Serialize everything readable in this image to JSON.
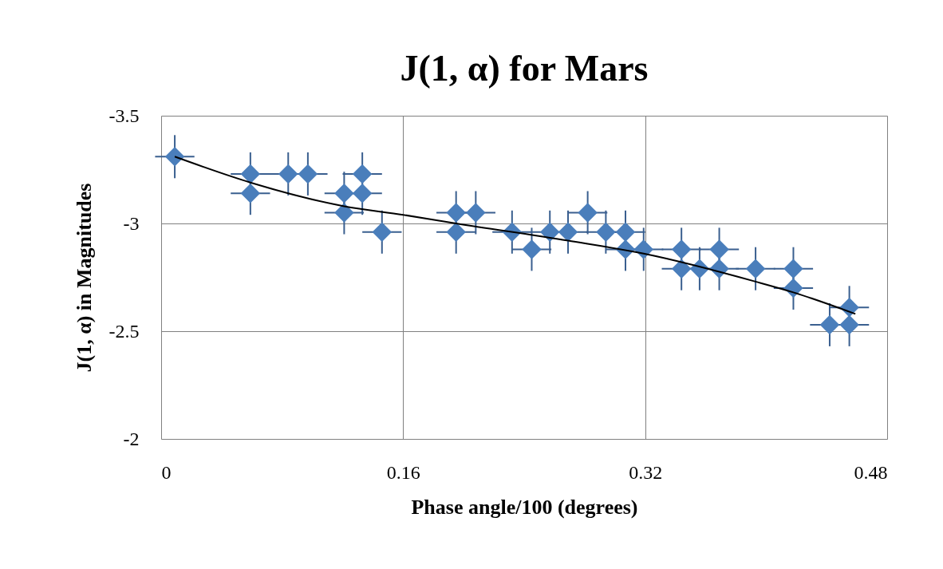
{
  "chart_data": {
    "type": "scatter",
    "title": "J(1, α) for Mars",
    "xlabel": "Phase angle/100 (degrees)",
    "ylabel": "J(1, α) in Magnitudes",
    "xlim": [
      0,
      0.48
    ],
    "xticks": [
      0,
      0.16,
      0.32,
      0.48
    ],
    "ylim": [
      -2,
      -3.5
    ],
    "yticks": [
      -3.5,
      -3,
      -2.5,
      -2
    ],
    "grid": true,
    "series": [
      {
        "color": "#4a7ebb",
        "marker": "diamond",
        "x": [
          0.009,
          0.059,
          0.059,
          0.084,
          0.097,
          0.121,
          0.121,
          0.133,
          0.133,
          0.146,
          0.195,
          0.195,
          0.208,
          0.232,
          0.245,
          0.257,
          0.269,
          0.282,
          0.294,
          0.307,
          0.307,
          0.319,
          0.344,
          0.344,
          0.356,
          0.369,
          0.369,
          0.393,
          0.418,
          0.418,
          0.442,
          0.455,
          0.455
        ],
        "values": [
          -3.31,
          -3.23,
          -3.14,
          -3.23,
          -3.23,
          -3.14,
          -3.05,
          -3.23,
          -3.14,
          -2.96,
          -3.05,
          -2.96,
          -3.05,
          -2.96,
          -2.88,
          -2.96,
          -2.96,
          -3.05,
          -2.96,
          -2.96,
          -2.88,
          -2.88,
          -2.88,
          -2.79,
          -2.79,
          -2.88,
          -2.79,
          -2.79,
          -2.79,
          -2.7,
          -2.53,
          -2.61,
          -2.53
        ],
        "errors": [
          0.1,
          0.1,
          0.1,
          0.1,
          0.1,
          0.1,
          0.1,
          0.1,
          0.1,
          0.1,
          0.1,
          0.1,
          0.1,
          0.1,
          0.1,
          0.1,
          0.1,
          0.1,
          0.1,
          0.1,
          0.1,
          0.1,
          0.1,
          0.1,
          0.1,
          0.1,
          0.1,
          0.1,
          0.1,
          0.1,
          0.1,
          0.1,
          0.1
        ],
        "xerrors": [
          0.013,
          0.013,
          0.013,
          0.013,
          0.013,
          0.013,
          0.013,
          0.013,
          0.013,
          0.013,
          0.013,
          0.013,
          0.013,
          0.013,
          0.013,
          0.013,
          0.013,
          0.013,
          0.013,
          0.013,
          0.013,
          0.013,
          0.013,
          0.013,
          0.013,
          0.013,
          0.013,
          0.013,
          0.013,
          0.013,
          0.013,
          0.013,
          0.013
        ]
      },
      {
        "type": "line",
        "color": "#000000",
        "marker": "none",
        "line_style": "solid",
        "x": [
          0.009,
          0.059,
          0.121,
          0.16,
          0.195,
          0.269,
          0.319,
          0.393,
          0.418,
          0.459
        ],
        "values": [
          -3.31,
          -3.19,
          -3.08,
          -3.04,
          -3.0,
          -2.92,
          -2.86,
          -2.73,
          -2.68,
          -2.58
        ]
      }
    ]
  }
}
